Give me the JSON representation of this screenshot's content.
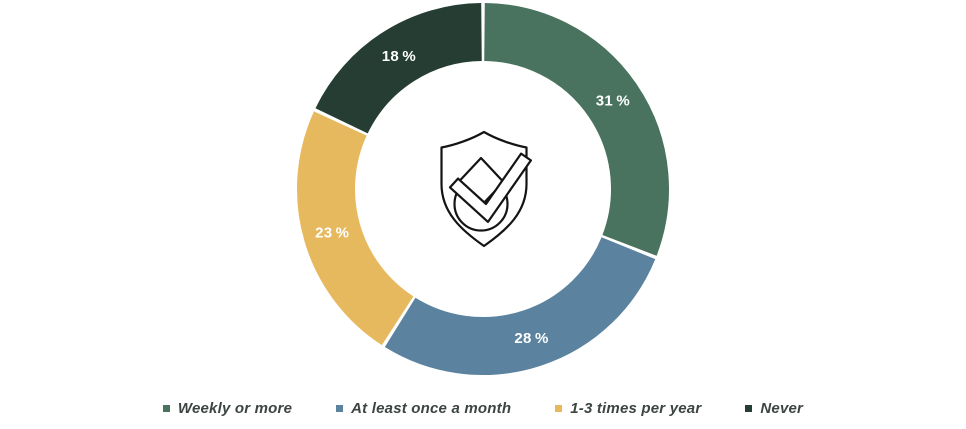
{
  "page": {
    "background": "#ffffff"
  },
  "chart_data": {
    "type": "pie",
    "subtype": "donut",
    "title": "",
    "categories": [
      "Weekly or more",
      "At least once a month",
      "1-3 times per year",
      "Never"
    ],
    "values": [
      31,
      28,
      23,
      18
    ],
    "slice_labels": [
      "31 %",
      "28 %",
      "23 %",
      "18 %"
    ],
    "colors": [
      "#49735f",
      "#5b83a0",
      "#e7b95e",
      "#253d32"
    ],
    "start_angle_deg": 0,
    "direction": "clockwise",
    "gap_deg": 1.1,
    "outer_radius_px": 186,
    "inner_radius_px": 128,
    "slice_label_color": "#ffffff",
    "legend_position": "bottom",
    "center_icon": "shield-checkmark-icon",
    "center_icon_stroke": "#141414"
  },
  "legend": {
    "text_color": "#3c4540",
    "items": [
      {
        "label": "Weekly or more",
        "color": "#49735f"
      },
      {
        "label": "At least once a month",
        "color": "#5b83a0"
      },
      {
        "label": "1-3 times per year",
        "color": "#e7b95e"
      },
      {
        "label": "Never",
        "color": "#253d32"
      }
    ]
  }
}
